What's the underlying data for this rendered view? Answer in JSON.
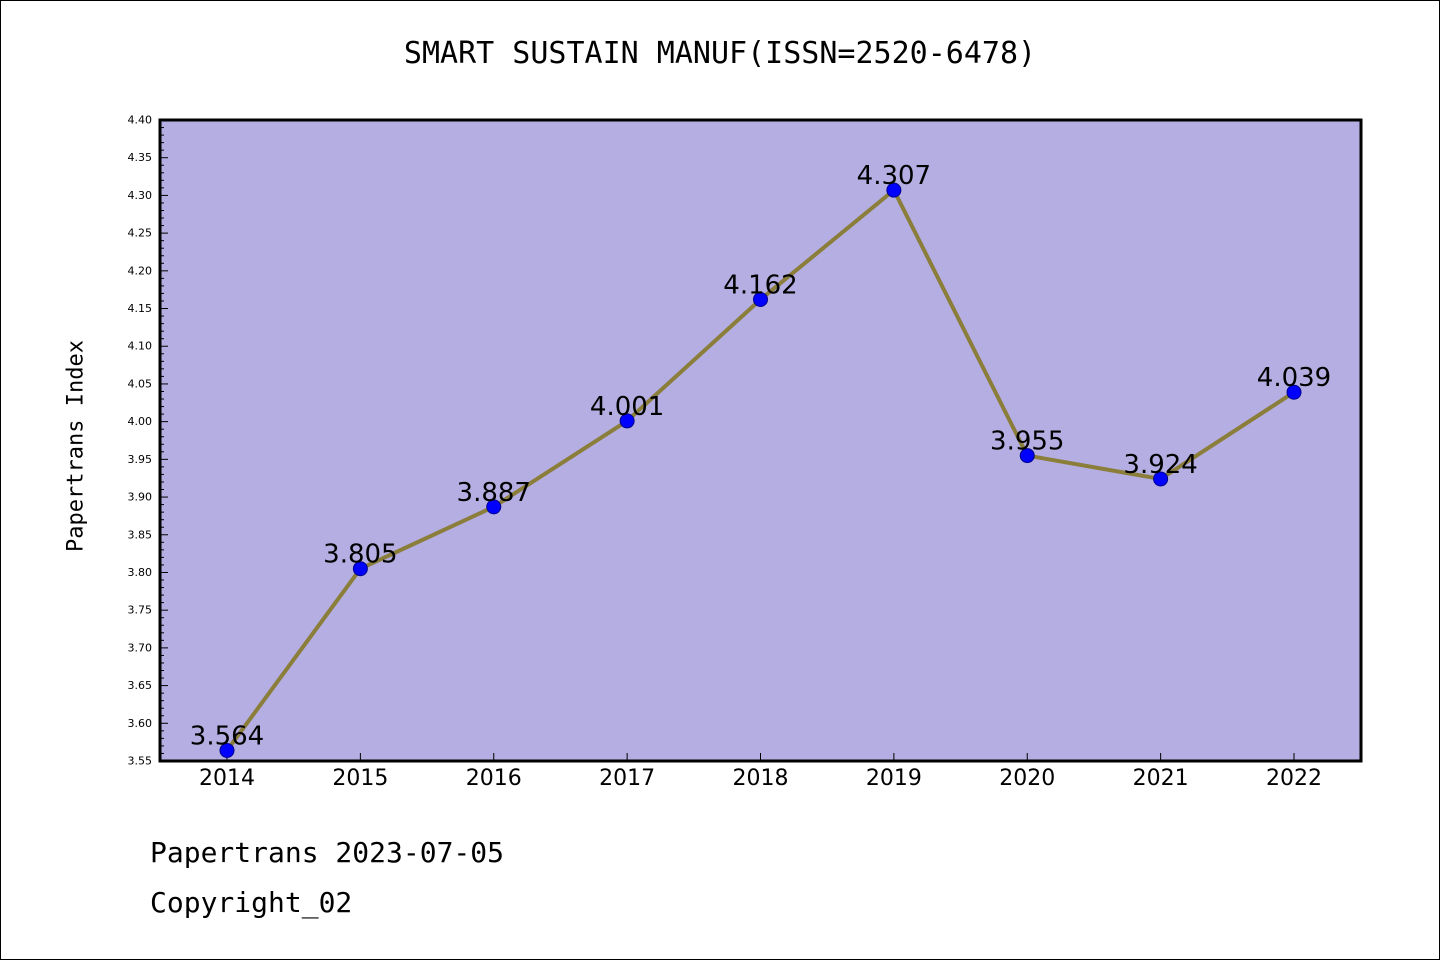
{
  "chart_data": {
    "type": "line",
    "title": "SMART SUSTAIN MANUF(ISSN=2520-6478)",
    "xlabel": "",
    "ylabel": "Papertrans Index",
    "categories": [
      "2014",
      "2015",
      "2016",
      "2017",
      "2018",
      "2019",
      "2020",
      "2021",
      "2022"
    ],
    "series": [
      {
        "values": [
          3.564,
          3.805,
          3.887,
          4.001,
          4.162,
          4.307,
          3.955,
          3.924,
          4.039
        ],
        "labels": [
          "3.564",
          "3.805",
          "3.887",
          "4.001",
          "4.162",
          "4.307",
          "3.955",
          "3.924",
          "4.039"
        ]
      }
    ],
    "ylim": [
      3.55,
      4.4
    ],
    "yticks": [
      "3.55",
      "3.60",
      "3.65",
      "3.70",
      "3.75",
      "3.80",
      "3.85",
      "3.90",
      "3.95",
      "4.00",
      "4.05",
      "4.10",
      "4.15",
      "4.20",
      "4.25",
      "4.30",
      "4.35",
      "4.40"
    ],
    "grid": false,
    "colors": {
      "plot_background": "#b4aee2",
      "line": "#8b7d3a",
      "marker": "#0000ff",
      "marker_edge": "#00008b"
    }
  },
  "footer": {
    "date_line": "Papertrans 2023-07-05",
    "copyright_line": "Copyright_02"
  }
}
